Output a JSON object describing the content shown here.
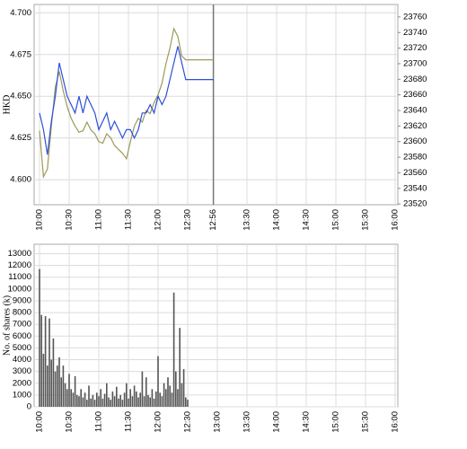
{
  "chart_data": [
    {
      "type": "line",
      "ylabel": "HKD",
      "x": [
        "10:00",
        "10:04",
        "10:08",
        "10:12",
        "10:16",
        "10:20",
        "10:24",
        "10:28",
        "10:32",
        "10:36",
        "10:40",
        "10:44",
        "10:48",
        "10:52",
        "10:56",
        "11:00",
        "11:04",
        "11:08",
        "11:12",
        "11:16",
        "11:20",
        "11:24",
        "11:28",
        "11:32",
        "11:36",
        "11:40",
        "11:44",
        "11:48",
        "11:52",
        "11:56",
        "12:00",
        "12:04",
        "12:08",
        "12:12",
        "12:16",
        "12:20",
        "12:24",
        "12:28",
        "12:32",
        "12:36",
        "12:40",
        "12:44",
        "12:48",
        "12:52",
        "12:56"
      ],
      "series": [
        {
          "color": "#9c9a5a",
          "axis": "y2",
          "values": [
            23614,
            23555,
            23565,
            23620,
            23670,
            23690,
            23665,
            23645,
            23630,
            23620,
            23612,
            23614,
            23625,
            23615,
            23610,
            23600,
            23598,
            23610,
            23605,
            23595,
            23590,
            23585,
            23578,
            23600,
            23620,
            23630,
            23625,
            23640,
            23636,
            23650,
            23660,
            23675,
            23700,
            23720,
            23745,
            23735,
            23710,
            23705,
            23705,
            23705,
            23705,
            23705,
            23705,
            23705,
            23705
          ]
        },
        {
          "color": "#2f4fd8",
          "values": [
            4.64,
            4.63,
            4.615,
            4.635,
            4.65,
            4.67,
            4.66,
            4.65,
            4.645,
            4.64,
            4.65,
            4.64,
            4.65,
            4.645,
            4.64,
            4.63,
            4.635,
            4.64,
            4.63,
            4.635,
            4.63,
            4.625,
            4.63,
            4.63,
            4.625,
            4.63,
            4.64,
            4.64,
            4.645,
            4.64,
            4.65,
            4.645,
            4.65,
            4.66,
            4.67,
            4.68,
            4.67,
            4.66,
            4.66,
            4.66,
            4.66,
            4.66,
            4.66,
            4.66,
            4.66
          ]
        }
      ],
      "xlim": [
        "10:00",
        "16:00"
      ],
      "xticks": [
        "10:00",
        "10:30",
        "11:00",
        "11:30",
        "12:00",
        "12:30",
        "12:56",
        "13:30",
        "14:00",
        "14:30",
        "15:00",
        "15:30",
        "16:00"
      ],
      "vline": "12:56",
      "ylim": [
        4.585,
        4.705
      ],
      "yticks": [
        {
          "value": 4.6,
          "label": "4.600"
        },
        4.625,
        {
          "value": 4.65,
          "label": "4.650"
        },
        4.675,
        {
          "value": 4.7,
          "label": "4.700"
        }
      ],
      "y2lim": [
        23519,
        23776
      ],
      "y2ticks": [
        23520,
        23540,
        23560,
        23580,
        23600,
        23620,
        23640,
        23660,
        23680,
        23700,
        23720,
        23740,
        23760
      ],
      "grid": true
    },
    {
      "type": "bar",
      "ylabel": "No. of shares (k)",
      "color": "#555555",
      "x": [
        "10:00",
        "10:02",
        "10:04",
        "10:06",
        "10:08",
        "10:10",
        "10:12",
        "10:14",
        "10:16",
        "10:18",
        "10:20",
        "10:22",
        "10:24",
        "10:26",
        "10:28",
        "10:30",
        "10:32",
        "10:34",
        "10:36",
        "10:38",
        "10:40",
        "10:42",
        "10:44",
        "10:46",
        "10:48",
        "10:50",
        "10:52",
        "10:54",
        "10:56",
        "10:58",
        "11:00",
        "11:02",
        "11:04",
        "11:06",
        "11:08",
        "11:10",
        "11:12",
        "11:14",
        "11:16",
        "11:18",
        "11:20",
        "11:22",
        "11:24",
        "11:26",
        "11:28",
        "11:30",
        "11:32",
        "11:34",
        "11:36",
        "11:38",
        "11:40",
        "11:42",
        "11:44",
        "11:46",
        "11:48",
        "11:50",
        "11:52",
        "11:54",
        "11:56",
        "11:58",
        "12:00",
        "12:02",
        "12:04",
        "12:06",
        "12:08",
        "12:10",
        "12:12",
        "12:14",
        "12:16",
        "12:18",
        "12:20",
        "12:22",
        "12:24",
        "12:26",
        "12:28",
        "12:30"
      ],
      "values": [
        11700,
        7800,
        4500,
        7700,
        3500,
        7500,
        4000,
        5800,
        3000,
        3500,
        4200,
        2500,
        3500,
        2000,
        1500,
        2800,
        1500,
        1200,
        2600,
        1000,
        900,
        1500,
        800,
        1200,
        600,
        1800,
        700,
        1000,
        600,
        1200,
        900,
        1500,
        700,
        1100,
        2000,
        800,
        600,
        1300,
        900,
        1700,
        700,
        1000,
        600,
        1200,
        2000,
        700,
        1500,
        900,
        1800,
        1300,
        800,
        1200,
        3000,
        900,
        2500,
        1000,
        800,
        1500,
        700,
        1300,
        4300,
        1200,
        900,
        2000,
        1500,
        2500,
        1800,
        1200,
        9700,
        3000,
        1500,
        6700,
        2000,
        3200,
        800,
        600
      ],
      "xlim": [
        "10:00",
        "16:00"
      ],
      "xticks": [
        "10:00",
        "10:30",
        "11:00",
        "11:30",
        "12:00",
        "12:30",
        "13:00",
        "13:30",
        "14:00",
        "14:30",
        "15:00",
        "15:30",
        "16:00"
      ],
      "ylim": [
        0,
        13800
      ],
      "yticks": [
        0,
        1000,
        2000,
        3000,
        4000,
        5000,
        6000,
        7000,
        8000,
        9000,
        10000,
        11000,
        12000,
        13000
      ],
      "grid": true
    }
  ]
}
